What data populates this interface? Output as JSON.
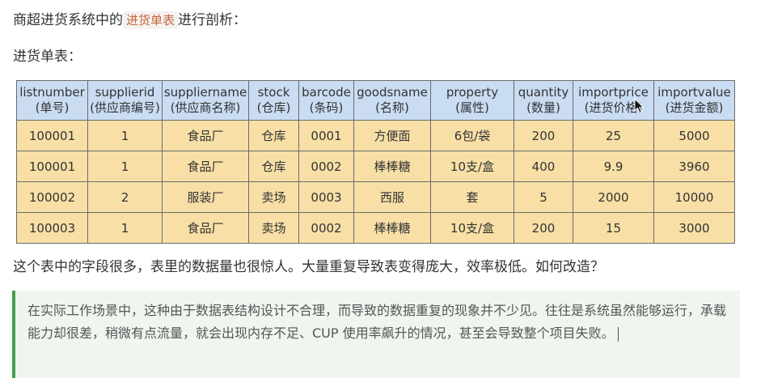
{
  "heading": {
    "prefix": "商超进货系统中的",
    "code": "进货单表",
    "suffix": "进行剖析："
  },
  "subheading": "进货单表：",
  "table": {
    "columns": [
      {
        "en": "listnumber",
        "zh": "(单号)"
      },
      {
        "en": "supplierid",
        "zh": "(供应商编号)"
      },
      {
        "en": "suppliername",
        "zh": "(供应商名称)"
      },
      {
        "en": "stock",
        "zh": "(仓库)"
      },
      {
        "en": "barcode",
        "zh": "(条码)"
      },
      {
        "en": "goodsname",
        "zh": "(名称)"
      },
      {
        "en": "property",
        "zh": "(属性)"
      },
      {
        "en": "quantity",
        "zh": "(数量)"
      },
      {
        "en": "importprice",
        "zh": "(进货价格)"
      },
      {
        "en": "importvalue",
        "zh": "(进货金额)"
      }
    ],
    "rows": [
      [
        "100001",
        "1",
        "食品厂",
        "仓库",
        "0001",
        "方便面",
        "6包/袋",
        "200",
        "25",
        "5000"
      ],
      [
        "100001",
        "1",
        "食品厂",
        "仓库",
        "0002",
        "棒棒糖",
        "10支/盒",
        "400",
        "9.9",
        "3960"
      ],
      [
        "100002",
        "2",
        "服装厂",
        "卖场",
        "0003",
        "西服",
        "套",
        "5",
        "2000",
        "10000"
      ],
      [
        "100003",
        "1",
        "食品厂",
        "卖场",
        "0002",
        "棒棒糖",
        "10支/盒",
        "200",
        "15",
        "3000"
      ]
    ]
  },
  "question": "这个表中的字段很多，表里的数据量也很惊人。大量重复导致表变得庞大，效率极低。如何改造？",
  "quote": "在实际工作场景中，这种由于数据表结构设计不合理，而导致的数据重复的现象并不少见。往往是系统虽然能够运行，承载能力却很差，稍微有点流量，就会出现内存不足、CUP 使用率飙升的情况，甚至会导致整个项目失败。",
  "colors": {
    "header_bg": "#c9dcf2",
    "cell_bg": "#f7dfa6",
    "quote_bg": "#eef6ef",
    "quote_border": "#43a04a",
    "code_color": "#c7663a"
  },
  "icons": [
    "mouse-pointer-icon",
    "text-cursor"
  ]
}
